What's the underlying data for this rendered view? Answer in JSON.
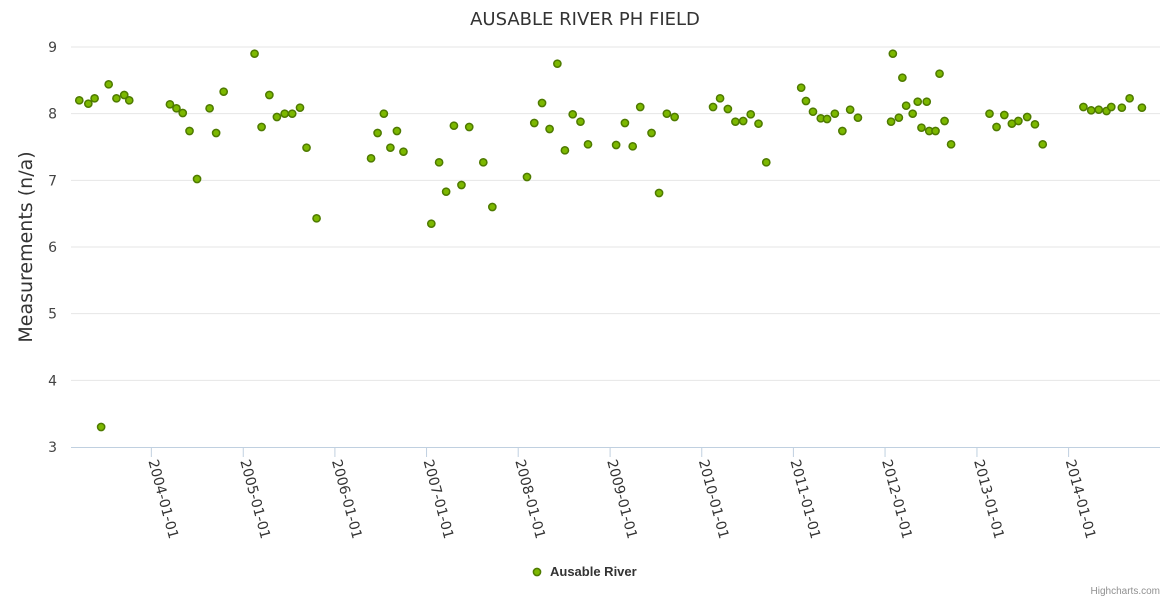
{
  "chart_data": {
    "type": "scatter",
    "title": "AUSABLE RIVER PH FIELD",
    "ylabel": "Measurements (n/a)",
    "xlabel": "",
    "ylim": [
      3,
      9
    ],
    "yticks": [
      3,
      4,
      5,
      6,
      7,
      8,
      9
    ],
    "xlim": [
      "2003-02-15",
      "2014-12-31"
    ],
    "xticks": [
      "2004-01-01",
      "2005-01-01",
      "2006-01-01",
      "2007-01-01",
      "2008-01-01",
      "2009-01-01",
      "2010-01-01",
      "2011-01-01",
      "2012-01-01",
      "2013-01-01",
      "2014-01-01"
    ],
    "legend": "bottom-center",
    "grid": true,
    "credits": "Highcharts.com",
    "series": [
      {
        "name": "Ausable River",
        "color": "#7cb800",
        "points": [
          [
            "2003-03-20",
            8.2
          ],
          [
            "2003-04-25",
            8.15
          ],
          [
            "2003-05-20",
            8.23
          ],
          [
            "2003-06-15",
            3.3
          ],
          [
            "2003-07-15",
            8.44
          ],
          [
            "2003-08-15",
            8.23
          ],
          [
            "2003-09-15",
            8.28
          ],
          [
            "2003-10-05",
            8.2
          ],
          [
            "2004-03-15",
            8.14
          ],
          [
            "2004-04-10",
            8.08
          ],
          [
            "2004-05-05",
            8.01
          ],
          [
            "2004-06-01",
            7.74
          ],
          [
            "2004-07-01",
            7.02
          ],
          [
            "2004-08-20",
            8.08
          ],
          [
            "2004-09-15",
            7.71
          ],
          [
            "2004-10-15",
            8.33
          ],
          [
            "2005-02-15",
            8.9
          ],
          [
            "2005-03-15",
            7.8
          ],
          [
            "2005-04-15",
            8.28
          ],
          [
            "2005-05-15",
            7.95
          ],
          [
            "2005-06-15",
            8.0
          ],
          [
            "2005-07-15",
            8.0
          ],
          [
            "2005-08-15",
            8.09
          ],
          [
            "2005-09-10",
            7.49
          ],
          [
            "2005-10-20",
            6.43
          ],
          [
            "2006-05-25",
            7.33
          ],
          [
            "2006-06-20",
            7.71
          ],
          [
            "2006-07-15",
            8.0
          ],
          [
            "2006-08-10",
            7.49
          ],
          [
            "2006-09-05",
            7.74
          ],
          [
            "2006-10-01",
            7.43
          ],
          [
            "2007-01-20",
            6.35
          ],
          [
            "2007-02-20",
            7.27
          ],
          [
            "2007-03-20",
            6.83
          ],
          [
            "2007-04-20",
            7.82
          ],
          [
            "2007-05-20",
            6.93
          ],
          [
            "2007-06-20",
            7.8
          ],
          [
            "2007-08-15",
            7.27
          ],
          [
            "2007-09-20",
            6.6
          ],
          [
            "2008-02-05",
            7.05
          ],
          [
            "2008-03-05",
            7.86
          ],
          [
            "2008-04-05",
            8.16
          ],
          [
            "2008-05-05",
            7.77
          ],
          [
            "2008-06-05",
            8.75
          ],
          [
            "2008-07-05",
            7.45
          ],
          [
            "2008-08-05",
            7.99
          ],
          [
            "2008-09-05",
            7.88
          ],
          [
            "2008-10-05",
            7.54
          ],
          [
            "2009-01-25",
            7.53
          ],
          [
            "2009-03-01",
            7.86
          ],
          [
            "2009-04-01",
            7.51
          ],
          [
            "2009-05-01",
            8.1
          ],
          [
            "2009-06-15",
            7.71
          ],
          [
            "2009-07-15",
            6.81
          ],
          [
            "2009-08-15",
            8.0
          ],
          [
            "2009-09-15",
            7.95
          ],
          [
            "2010-02-15",
            8.1
          ],
          [
            "2010-03-15",
            8.23
          ],
          [
            "2010-04-15",
            8.07
          ],
          [
            "2010-05-15",
            7.88
          ],
          [
            "2010-06-15",
            7.89
          ],
          [
            "2010-07-15",
            7.99
          ],
          [
            "2010-08-15",
            7.85
          ],
          [
            "2010-09-15",
            7.27
          ],
          [
            "2011-02-01",
            8.39
          ],
          [
            "2011-02-20",
            8.19
          ],
          [
            "2011-03-20",
            8.03
          ],
          [
            "2011-04-20",
            7.93
          ],
          [
            "2011-05-15",
            7.92
          ],
          [
            "2011-06-15",
            8.0
          ],
          [
            "2011-07-15",
            7.74
          ],
          [
            "2011-08-15",
            8.06
          ],
          [
            "2011-09-15",
            7.94
          ],
          [
            "2012-01-25",
            7.88
          ],
          [
            "2012-02-01",
            8.9
          ],
          [
            "2012-02-25",
            7.94
          ],
          [
            "2012-03-10",
            8.54
          ],
          [
            "2012-03-25",
            8.12
          ],
          [
            "2012-04-20",
            8.0
          ],
          [
            "2012-05-10",
            8.18
          ],
          [
            "2012-05-25",
            7.79
          ],
          [
            "2012-06-15",
            8.18
          ],
          [
            "2012-06-25",
            7.74
          ],
          [
            "2012-07-20",
            7.74
          ],
          [
            "2012-08-05",
            8.6
          ],
          [
            "2012-08-25",
            7.89
          ],
          [
            "2012-09-20",
            7.54
          ],
          [
            "2013-02-20",
            8.0
          ],
          [
            "2013-03-20",
            7.8
          ],
          [
            "2013-04-20",
            7.98
          ],
          [
            "2013-05-20",
            7.85
          ],
          [
            "2013-06-15",
            7.89
          ],
          [
            "2013-07-20",
            7.95
          ],
          [
            "2013-08-20",
            7.84
          ],
          [
            "2013-09-20",
            7.54
          ],
          [
            "2014-03-01",
            8.1
          ],
          [
            "2014-04-01",
            8.05
          ],
          [
            "2014-05-01",
            8.06
          ],
          [
            "2014-06-01",
            8.04
          ],
          [
            "2014-06-20",
            8.1
          ],
          [
            "2014-08-01",
            8.09
          ],
          [
            "2014-09-01",
            8.23
          ],
          [
            "2014-10-20",
            8.09
          ]
        ]
      }
    ]
  }
}
